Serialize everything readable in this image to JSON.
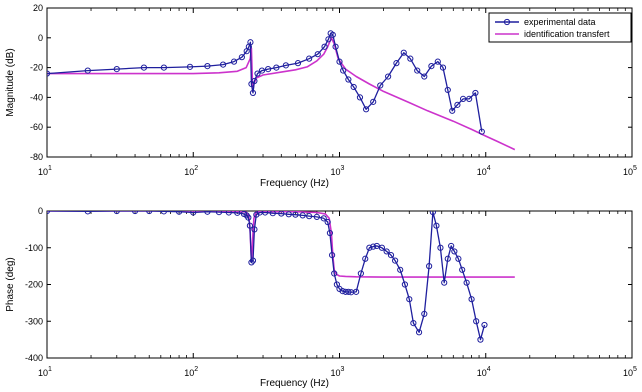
{
  "chart_data": [
    {
      "type": "line",
      "xscale": "log",
      "xlim": [
        10,
        100000
      ],
      "ylim": [
        -80,
        20
      ],
      "xlabel": "Frequency (Hz)",
      "ylabel": "Magnitude (dB)",
      "xticks": [
        {
          "value": 10,
          "base": "10",
          "exp": "1"
        },
        {
          "value": 100,
          "base": "10",
          "exp": "2"
        },
        {
          "value": 1000,
          "base": "10",
          "exp": "3"
        },
        {
          "value": 10000,
          "base": "10",
          "exp": "4"
        },
        {
          "value": 100000,
          "base": "10",
          "exp": "5"
        }
      ],
      "yticks": [
        20,
        0,
        -20,
        -40,
        -60,
        -80
      ],
      "grid": false,
      "legend_position": "top-right",
      "series": [
        {
          "name": "experimental data",
          "color": "#1f1f9e",
          "marker": "circle",
          "x": [
            10,
            19,
            30,
            46,
            63,
            95,
            125,
            160,
            190,
            215,
            232,
            240,
            246,
            250,
            256,
            262,
            275,
            295,
            325,
            370,
            430,
            520,
            620,
            710,
            790,
            840,
            870,
            900,
            940,
            1000,
            1060,
            1150,
            1250,
            1380,
            1520,
            1700,
            1900,
            2150,
            2450,
            2750,
            3050,
            3400,
            3800,
            4250,
            4700,
            5100,
            5500,
            5900,
            6400,
            7000,
            7700,
            8500,
            9400
          ],
          "y": [
            -24,
            -22,
            -21,
            -20,
            -20,
            -19.5,
            -19,
            -18,
            -16,
            -13,
            -9,
            -6,
            -3,
            -31,
            -37,
            -29,
            -24,
            -22,
            -21,
            -20,
            -18.5,
            -17,
            -14,
            -11,
            -6,
            -1,
            3,
            2,
            -6,
            -16,
            -22,
            -28,
            -33,
            -40,
            -48,
            -43,
            -32,
            -26,
            -17,
            -10,
            -14,
            -22,
            -26,
            -19,
            -16,
            -20,
            -35,
            -49,
            -45,
            -41,
            -41,
            -37,
            -63
          ]
        },
        {
          "name": "identification transfert",
          "color": "#cc33cc",
          "marker": "none",
          "x": [
            10,
            50,
            100,
            150,
            200,
            230,
            245,
            250,
            255,
            260,
            270,
            300,
            400,
            500,
            600,
            700,
            780,
            830,
            880,
            920,
            980,
            1100,
            1300,
            1600,
            2000,
            3000,
            4000,
            6000,
            8000,
            10000,
            12000,
            15800
          ],
          "y": [
            -24,
            -24,
            -24,
            -23.5,
            -22.5,
            -20,
            -14,
            -7,
            -36,
            -31,
            -27,
            -25,
            -23,
            -21.5,
            -19.5,
            -15.5,
            -11,
            -6,
            0,
            -4,
            -14,
            -21,
            -26,
            -31,
            -36,
            -43.5,
            -49,
            -56,
            -61.5,
            -66,
            -69.5,
            -75
          ]
        }
      ]
    },
    {
      "type": "line",
      "xscale": "log",
      "xlim": [
        10,
        100000
      ],
      "ylim": [
        -400,
        0
      ],
      "xlabel": "Frequency (Hz)",
      "ylabel": "Phase (deg)",
      "xticks": [
        {
          "value": 10,
          "base": "10",
          "exp": "1"
        },
        {
          "value": 100,
          "base": "10",
          "exp": "2"
        },
        {
          "value": 1000,
          "base": "10",
          "exp": "3"
        },
        {
          "value": 10000,
          "base": "10",
          "exp": "4"
        },
        {
          "value": 100000,
          "base": "10",
          "exp": "5"
        }
      ],
      "yticks": [
        0,
        -100,
        -200,
        -300,
        -400
      ],
      "grid": false,
      "series": [
        {
          "name": "experimental data",
          "color": "#1f1f9e",
          "marker": "circle",
          "x": [
            10,
            19,
            30,
            40,
            50,
            63,
            80,
            100,
            125,
            150,
            175,
            200,
            222,
            232,
            238,
            244,
            250,
            256,
            262,
            270,
            285,
            310,
            350,
            400,
            450,
            500,
            560,
            620,
            700,
            780,
            830,
            860,
            890,
            920,
            960,
            1000,
            1050,
            1100,
            1150,
            1200,
            1300,
            1400,
            1500,
            1600,
            1700,
            1800,
            1950,
            2100,
            2250,
            2400,
            2600,
            2800,
            3000,
            3200,
            3500,
            3800,
            4100,
            4350,
            4600,
            4900,
            5200,
            5500,
            5800,
            6100,
            6500,
            6900,
            7400,
            8000,
            8600,
            9200,
            9800
          ],
          "y": [
            0,
            -1,
            0,
            0,
            0,
            -1,
            -2,
            -4,
            -2,
            -3,
            -4,
            -5,
            -8,
            -12,
            -18,
            -40,
            -140,
            -135,
            -50,
            -10,
            -4,
            -4,
            -6,
            -7,
            -9,
            -10,
            -12,
            -14,
            -16,
            -20,
            -30,
            -60,
            -120,
            -170,
            -200,
            -212,
            -218,
            -220,
            -220,
            -221,
            -220,
            -170,
            -130,
            -100,
            -97,
            -95,
            -100,
            -110,
            -120,
            -135,
            -160,
            -200,
            -240,
            -305,
            -330,
            -280,
            -150,
            -3,
            -40,
            -100,
            -195,
            -130,
            -95,
            -110,
            -130,
            -160,
            -195,
            -240,
            -300,
            -350,
            -310
          ]
        },
        {
          "name": "identification transfert",
          "color": "#cc33cc",
          "marker": "none",
          "x": [
            10,
            100,
            200,
            230,
            240,
            245,
            250,
            253,
            256,
            260,
            270,
            300,
            500,
            700,
            800,
            850,
            880,
            900,
            920,
            950,
            1000,
            1100,
            1300,
            2000,
            5000,
            15800
          ],
          "y": [
            0,
            0,
            -1,
            -3,
            -15,
            -60,
            -135,
            -110,
            -60,
            -20,
            -3,
            -1,
            -2,
            -4,
            -8,
            -20,
            -60,
            -120,
            -160,
            -172,
            -177,
            -178,
            -179,
            -180,
            -180,
            -180
          ]
        }
      ]
    }
  ]
}
